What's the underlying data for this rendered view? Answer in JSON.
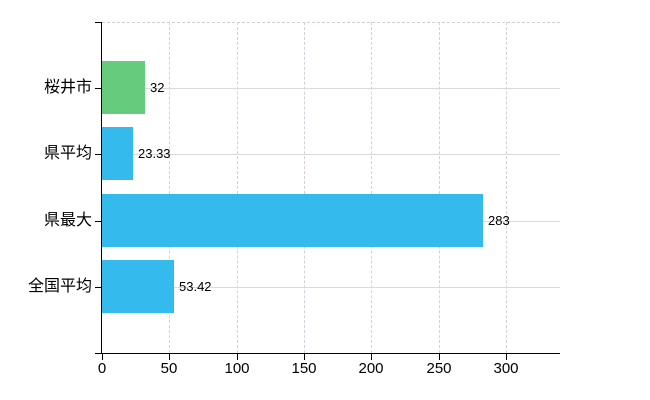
{
  "chart_data": {
    "type": "bar",
    "orientation": "horizontal",
    "title": "",
    "xlabel": "",
    "ylabel": "",
    "categories": [
      "桜井市",
      "県平均",
      "県最大",
      "全国平均"
    ],
    "values": [
      32,
      23.33,
      283,
      53.42
    ],
    "value_labels": [
      "32",
      "23.33",
      "283",
      "53.42"
    ],
    "series": [
      {
        "name": "",
        "values": [
          32,
          23.33,
          283,
          53.42
        ]
      }
    ],
    "bar_colors": [
      "#67cb7e",
      "#35baee",
      "#35baee",
      "#35baee"
    ],
    "x_ticks": [
      0,
      50,
      100,
      150,
      200,
      250,
      300
    ],
    "x_tick_labels": [
      "0",
      "50",
      "100",
      "150",
      "200",
      "250",
      "300"
    ],
    "xlim": [
      0,
      340
    ],
    "grid": true,
    "legend": false,
    "gridline_horizontal_style": "solid",
    "gridline_vertical_style": "dashed",
    "plot_top_border_style": "dashed"
  },
  "colors": {
    "background": "#ffffff",
    "axis": "#000000",
    "text": "#000000",
    "grid_horizontal": "#d5ddd4",
    "grid_vertical": "#d8ced7",
    "top_border": "#d8ced7",
    "green_bar": "#67cb7e",
    "blue_bar": "#35baee"
  }
}
